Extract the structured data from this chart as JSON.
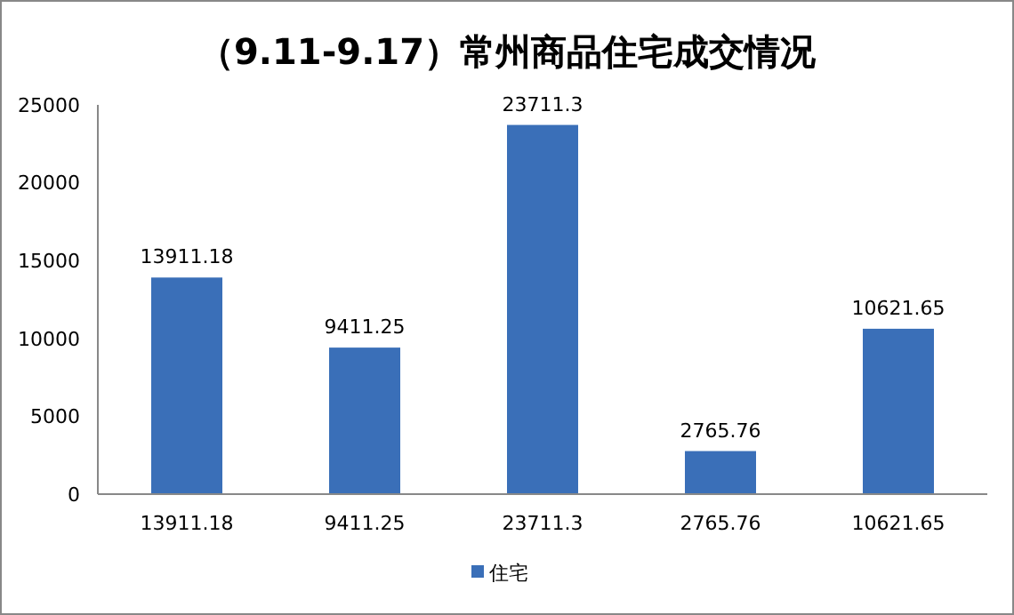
{
  "chart_data": {
    "type": "bar",
    "title": "（9.11-9.17）常州商品住宅成交情况",
    "categories": [
      "13911.18",
      "9411.25",
      "23711.3",
      "2765.76",
      "10621.65"
    ],
    "series": [
      {
        "name": "住宅",
        "color": "#3a6fb8",
        "values": [
          13911.18,
          9411.25,
          23711.3,
          2765.76,
          10621.65
        ]
      }
    ],
    "ylim": [
      0,
      25000
    ],
    "yticks": [
      0,
      5000,
      10000,
      15000,
      20000,
      25000
    ],
    "grid": false,
    "legend": "bottom",
    "data_labels": true
  }
}
